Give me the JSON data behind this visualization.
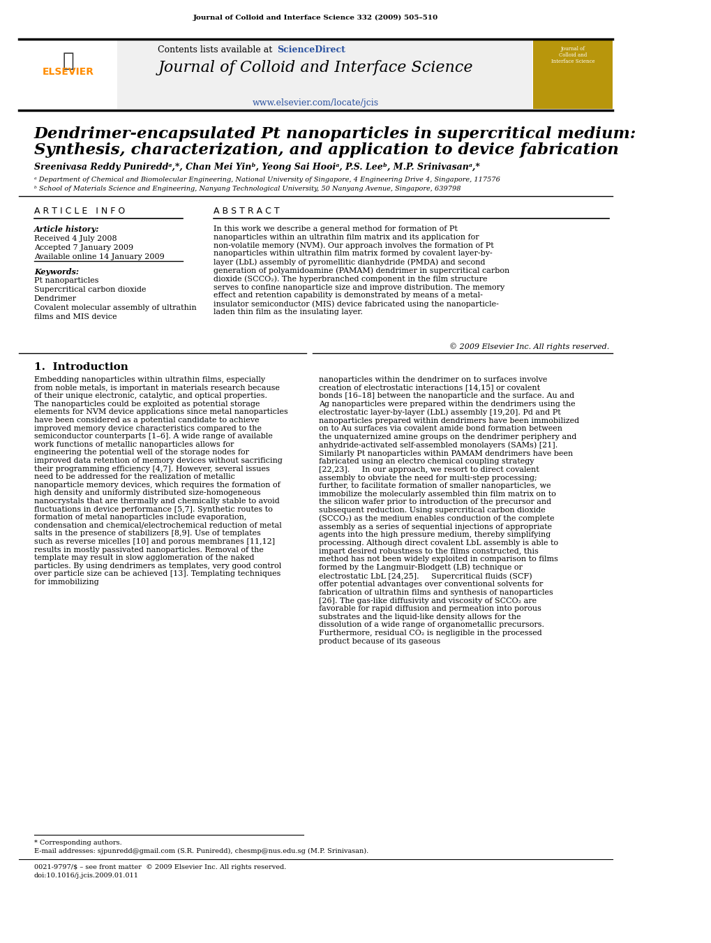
{
  "journal_line": "Journal of Colloid and Interface Science 332 (2009) 505–510",
  "contents_line": "Contents lists available at ",
  "sciencedirect": "ScienceDirect",
  "journal_title": "Journal of Colloid and Interface Science",
  "journal_url": "www.elsevier.com/locate/jcis",
  "paper_title_line1": "Dendrimer-encapsulated Pt nanoparticles in supercritical medium:",
  "paper_title_line2": "Synthesis, characterization, and application to device fabrication",
  "authors": "Sreenivasa Reddy Punireddᵃ,*, Chan Mei Yinᵇ, Yeong Sai Hooiᵃ, P.S. Leeᵇ, M.P. Srinivasanᵃ,*",
  "affil_a": "ᵃ Department of Chemical and Biomolecular Engineering, National University of Singapore, 4 Engineering Drive 4, Singapore, 117576",
  "affil_b": "ᵇ School of Materials Science and Engineering, Nanyang Technological University, 50 Nanyang Avenue, Singapore, 639798",
  "article_info_header": "A R T I C L E   I N F O",
  "abstract_header": "A B S T R A C T",
  "article_history_label": "Article history:",
  "received": "Received 4 July 2008",
  "accepted": "Accepted 7 January 2009",
  "available": "Available online 14 January 2009",
  "keywords_label": "Keywords:",
  "keyword1": "Pt nanoparticles",
  "keyword2": "Supercritical carbon dioxide",
  "keyword3": "Dendrimer",
  "keyword4": "Covalent molecular assembly of ultrathin",
  "keyword5": "films and MIS device",
  "abstract_text": "In this work we describe a general method for formation of Pt nanoparticles within an ultrathin film matrix and its application for non-volatile memory (NVM). Our approach involves the formation of Pt nanoparticles within ultrathin film matrix formed by covalent layer-by-layer (LbL) assembly of pyromellitic dianhydride (PMDA) and second generation of polyamidoamine (PAMAM) dendrimer in supercritical carbon dioxide (SCCO₂). The hyperbranched component in the film structure serves to confine nanoparticle size and improve distribution. The memory effect and retention capability is demonstrated by means of a metal-insulator semiconductor (MIS) device fabricated using the nanoparticle-laden thin film as the insulating layer.",
  "copyright": "© 2009 Elsevier Inc. All rights reserved.",
  "intro_header": "1.  Introduction",
  "intro_col1": "Embedding nanoparticles within ultrathin films, especially from noble metals, is important in materials research because of their unique electronic, catalytic, and optical properties. The nanoparticles could be exploited as potential storage elements for NVM device applications since metal nanoparticles have been considered as a potential candidate to achieve improved memory device characteristics compared to the semiconductor counterparts [1–6]. A wide range of available work functions of metallic nanoparticles allows for engineering the potential well of the storage nodes for improved data retention of memory devices without sacrificing their programming efficiency [4,7]. However, several issues need to be addressed for the realization of metallic nanoparticle memory devices, which requires the formation of high density and uniformly distributed size-homogeneous nanocrystals that are thermally and chemically stable to avoid fluctuations in device performance [5,7]. Synthetic routes to formation of metal nanoparticles include evaporation, condensation and chemical/electrochemical reduction of metal salts in the presence of stabilizers [8,9]. Use of templates such as reverse micelles [10] and porous membranes [11,12] results in mostly passivated nanoparticles. Removal of the template may result in slow agglomeration of the naked particles. By using dendrimers as templates, very good control over particle size can be achieved [13]. Templating techniques for immobilizing",
  "intro_col2": "nanoparticles within the dendrimer on to surfaces involve creation of electrostatic interactions [14,15] or covalent bonds [16–18] between the nanoparticle and the surface. Au and Ag nanoparticles were prepared within the dendrimers using the electrostatic layer-by-layer (LbL) assembly [19,20]. Pd and Pt nanoparticles prepared within dendrimers have been immobilized on to Au surfaces via covalent amide bond formation between the unquaternized amine groups on the dendrimer periphery and anhydride-activated self-assembled monolayers (SAMs) [21]. Similarly Pt nanoparticles within PAMAM dendrimers have been fabricated using an electro chemical coupling strategy [22,23].\n    In our approach, we resort to direct covalent assembly to obviate the need for multi-step processing; further, to facilitate formation of smaller nanoparticles, we immobilize the molecularly assembled thin film matrix on to the silicon wafer prior to introduction of the precursor and subsequent reduction. Using supercritical carbon dioxide (SCCO₂) as the medium enables conduction of the complete assembly as a series of sequential injections of appropriate agents into the high pressure medium, thereby simplifying processing. Although direct covalent LbL assembly is able to impart desired robustness to the films constructed, this method has not been widely exploited in comparison to films formed by the Langmuir-Blodgett (LB) technique or electrostatic LbL [24,25].\n    Supercritical fluids (SCF) offer potential advantages over conventional solvents for fabrication of ultrathin films and synthesis of nanoparticles [26]. The gas-like diffusivity and viscosity of SCCO₂ are favorable for rapid diffusion and permeation into porous substrates and the liquid-like density allows for the dissolution of a wide range of organometallic precursors. Furthermore, residual CO₂ is negligible in the processed product because of its gaseous",
  "footer_note": "* Corresponding authors.",
  "footer_email": "E-mail addresses: sjpunredd@gmail.com (S.R. Puniredd), chesmp@nus.edu.sg (M.P. Srinivasan).",
  "footer_issn": "0021-9797/$ – see front matter  © 2009 Elsevier Inc. All rights reserved.",
  "footer_doi": "doi:10.1016/j.jcis.2009.01.011",
  "header_bg": "#f0f0f0",
  "elsevier_color": "#FF8C00",
  "sciencedirect_color": "#2B52A0",
  "journal_cover_bg": "#B8960C",
  "url_color": "#2B52A0"
}
